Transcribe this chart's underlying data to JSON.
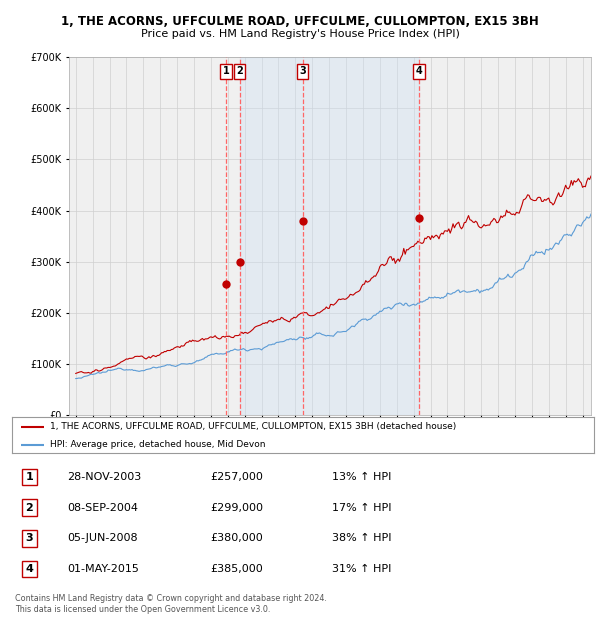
{
  "title_line1": "1, THE ACORNS, UFFCULME ROAD, UFFCULME, CULLOMPTON, EX15 3BH",
  "title_line2": "Price paid vs. HM Land Registry's House Price Index (HPI)",
  "transactions": [
    {
      "num": 1,
      "date_str": "28-NOV-2003",
      "date_dec": 2003.909,
      "price": 257000,
      "pct": "13%"
    },
    {
      "num": 2,
      "date_str": "08-SEP-2004",
      "date_dec": 2004.693,
      "price": 299000,
      "pct": "17%"
    },
    {
      "num": 3,
      "date_str": "05-JUN-2008",
      "date_dec": 2008.426,
      "price": 380000,
      "pct": "38%"
    },
    {
      "num": 4,
      "date_str": "01-MAY-2015",
      "date_dec": 2015.33,
      "price": 385000,
      "pct": "31%"
    }
  ],
  "hpi_color": "#5b9bd5",
  "price_color": "#c00000",
  "marker_color": "#c00000",
  "shade_color": "#cce0f5",
  "vline_color": "#ff6666",
  "bg_chart": "#f0f0f0",
  "grid_color": "#d0d0d0",
  "legend_line1": "1, THE ACORNS, UFFCULME ROAD, UFFCULME, CULLOMPTON, EX15 3BH (detached house)",
  "legend_line2": "HPI: Average price, detached house, Mid Devon",
  "footer_line1": "Contains HM Land Registry data © Crown copyright and database right 2024.",
  "footer_line2": "This data is licensed under the Open Government Licence v3.0.",
  "ylim": [
    0,
    700000
  ],
  "ytick_vals": [
    0,
    100000,
    200000,
    300000,
    400000,
    500000,
    600000,
    700000
  ],
  "xlim_start": 1994.6,
  "xlim_end": 2025.5,
  "seed": 12345
}
